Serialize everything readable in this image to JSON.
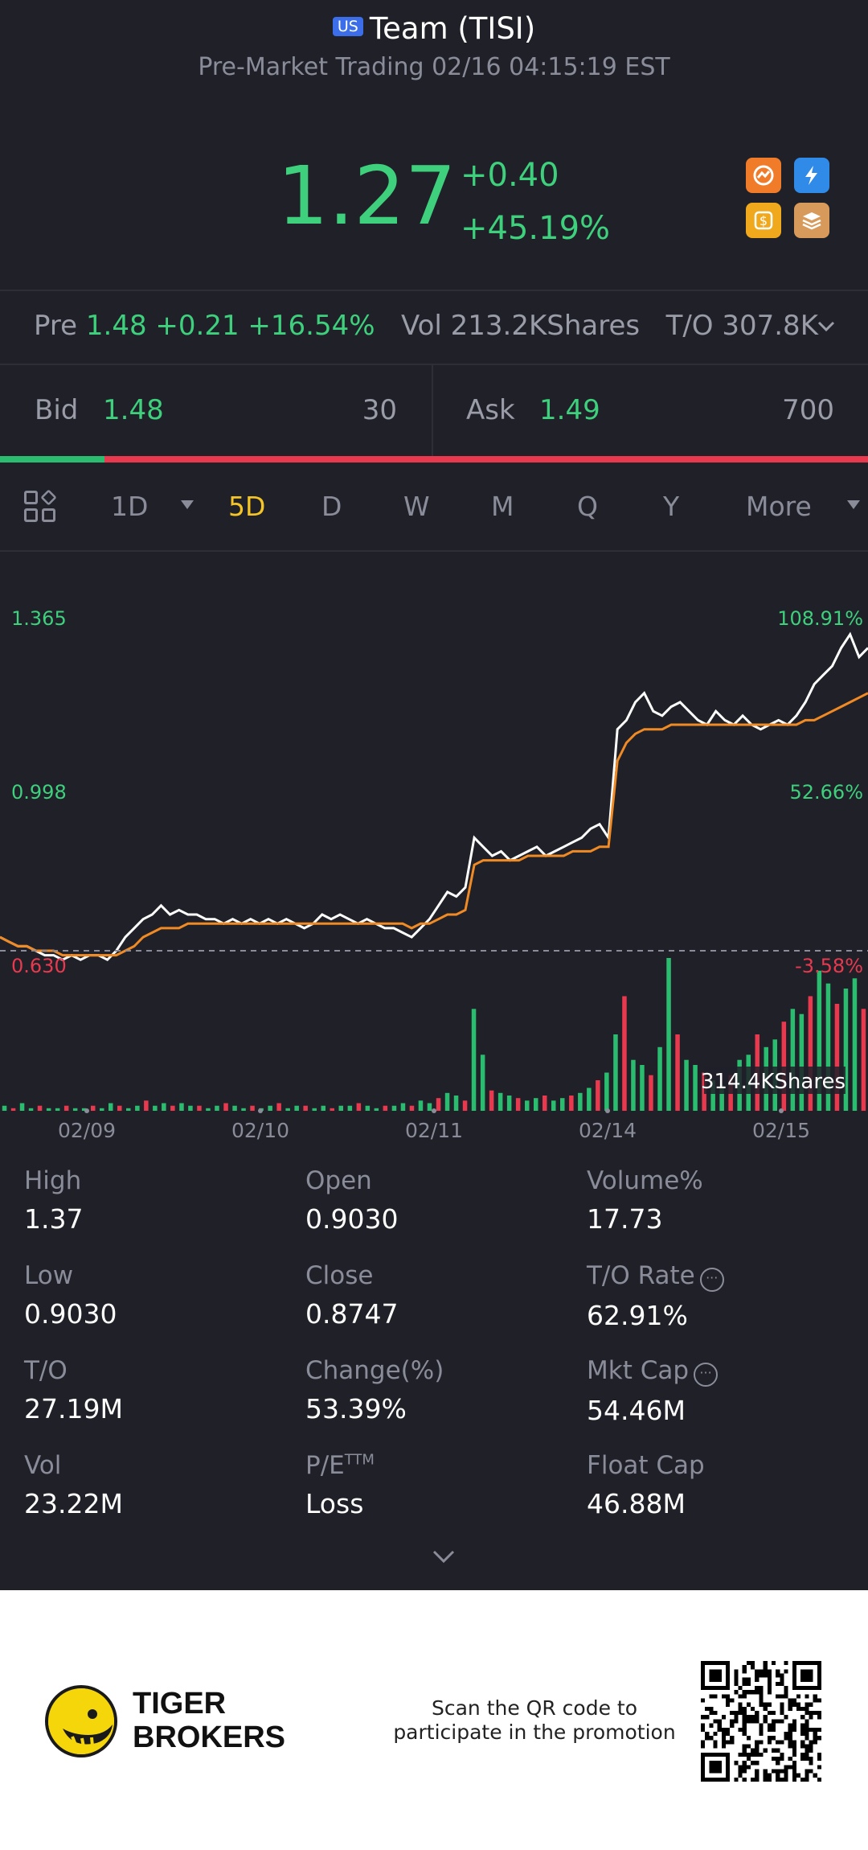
{
  "header": {
    "market_flag": "US",
    "title": "Team (TISI)",
    "subtitle": "Pre-Market Trading 02/16 04:15:19 EST",
    "price": "1.27",
    "change": "+0.40",
    "change_pct": "+45.19%",
    "badge_icons": [
      "orange-chart-icon",
      "lightning-1-icon",
      "dollar-icon",
      "stack-a-icon"
    ]
  },
  "premarket": {
    "label": "Pre",
    "price": "1.48",
    "change": "+0.21",
    "change_pct": "+16.54%",
    "vol": "Vol 213.2KShares",
    "turnover": "T/O 307.8K"
  },
  "bid": {
    "label": "Bid",
    "price": "1.48",
    "qty": "30"
  },
  "ask": {
    "label": "Ask",
    "price": "1.49",
    "qty": "700"
  },
  "bid_ask_ratio": 0.12,
  "tabs": [
    "1D",
    "5D",
    "D",
    "W",
    "M",
    "Q",
    "Y",
    "More"
  ],
  "active_tab": "5D",
  "chart_data": {
    "type": "line",
    "price_axis_left": [
      "1.365",
      "0.998",
      "0.630"
    ],
    "percent_axis_right": [
      "108.91%",
      "52.66%",
      "-3.58%"
    ],
    "x_tick_labels": [
      "02/09",
      "02/10",
      "02/11",
      "02/14",
      "02/15"
    ],
    "volume_label": "314.4KShares",
    "ylim": [
      0.63,
      1.365
    ],
    "reference_close": 0.655,
    "series": [
      {
        "color": "#ffffff",
        "values": [
          0.66,
          0.65,
          0.64,
          0.64,
          0.63,
          0.62,
          0.62,
          0.61,
          0.62,
          0.61,
          0.62,
          0.62,
          0.61,
          0.63,
          0.66,
          0.68,
          0.7,
          0.71,
          0.73,
          0.71,
          0.72,
          0.71,
          0.71,
          0.7,
          0.7,
          0.69,
          0.7,
          0.69,
          0.7,
          0.69,
          0.7,
          0.69,
          0.7,
          0.69,
          0.68,
          0.69,
          0.71,
          0.7,
          0.71,
          0.7,
          0.69,
          0.7,
          0.69,
          0.68,
          0.68,
          0.67,
          0.66,
          0.68,
          0.7,
          0.73,
          0.76,
          0.75,
          0.77,
          0.88,
          0.86,
          0.84,
          0.85,
          0.83,
          0.84,
          0.85,
          0.86,
          0.84,
          0.85,
          0.86,
          0.87,
          0.88,
          0.9,
          0.91,
          0.88,
          1.12,
          1.14,
          1.18,
          1.2,
          1.16,
          1.15,
          1.17,
          1.18,
          1.16,
          1.14,
          1.13,
          1.16,
          1.14,
          1.13,
          1.15,
          1.13,
          1.12,
          1.13,
          1.14,
          1.13,
          1.15,
          1.18,
          1.22,
          1.24,
          1.26,
          1.3,
          1.33,
          1.28,
          1.3
        ]
      },
      {
        "color": "#f08a24",
        "values": [
          0.66,
          0.65,
          0.64,
          0.64,
          0.63,
          0.63,
          0.63,
          0.62,
          0.62,
          0.62,
          0.62,
          0.62,
          0.62,
          0.62,
          0.63,
          0.64,
          0.66,
          0.67,
          0.68,
          0.68,
          0.68,
          0.69,
          0.69,
          0.69,
          0.69,
          0.69,
          0.69,
          0.69,
          0.69,
          0.69,
          0.69,
          0.69,
          0.69,
          0.69,
          0.69,
          0.69,
          0.69,
          0.69,
          0.69,
          0.69,
          0.69,
          0.69,
          0.69,
          0.69,
          0.69,
          0.69,
          0.68,
          0.69,
          0.69,
          0.7,
          0.71,
          0.71,
          0.72,
          0.82,
          0.83,
          0.83,
          0.83,
          0.83,
          0.83,
          0.84,
          0.84,
          0.84,
          0.84,
          0.84,
          0.85,
          0.85,
          0.85,
          0.86,
          0.86,
          1.05,
          1.09,
          1.11,
          1.12,
          1.12,
          1.12,
          1.13,
          1.13,
          1.13,
          1.13,
          1.13,
          1.13,
          1.13,
          1.13,
          1.13,
          1.13,
          1.13,
          1.13,
          1.13,
          1.13,
          1.13,
          1.14,
          1.14,
          1.15,
          1.16,
          1.17,
          1.18,
          1.19,
          1.2
        ]
      }
    ],
    "volume": [
      2,
      1,
      3,
      1,
      2,
      1,
      1,
      2,
      1,
      1,
      2,
      1,
      3,
      2,
      1,
      2,
      4,
      2,
      3,
      2,
      3,
      2,
      2,
      1,
      2,
      3,
      2,
      1,
      2,
      1,
      2,
      3,
      1,
      2,
      2,
      1,
      2,
      1,
      2,
      2,
      3,
      2,
      1,
      2,
      2,
      3,
      2,
      4,
      3,
      5,
      7,
      6,
      4,
      40,
      22,
      8,
      7,
      6,
      5,
      4,
      5,
      6,
      4,
      5,
      6,
      7,
      9,
      12,
      15,
      30,
      45,
      20,
      18,
      14,
      25,
      60,
      30,
      20,
      18,
      15,
      12,
      10,
      14,
      20,
      22,
      30,
      25,
      28,
      35,
      40,
      38,
      45,
      55,
      50,
      42,
      48,
      52,
      40
    ]
  },
  "stats": [
    {
      "label": "High",
      "value": "1.37"
    },
    {
      "label": "Open",
      "value": "0.9030"
    },
    {
      "label": "Volume%",
      "value": "17.73"
    },
    {
      "label": "Low",
      "value": "0.9030"
    },
    {
      "label": "Close",
      "value": "0.8747"
    },
    {
      "label": "T/O Rate",
      "value": "62.91%"
    },
    {
      "label": "T/O",
      "value": "27.19M"
    },
    {
      "label": "Change(%)",
      "value": "53.39%"
    },
    {
      "label": "Mkt Cap",
      "value": "54.46M"
    },
    {
      "label": "Vol",
      "value": "23.22M"
    },
    {
      "label": "P/E",
      "label_sup": "TTM",
      "value": "Loss"
    },
    {
      "label": "Float Cap",
      "value": "46.88M"
    }
  ],
  "footer": {
    "brand_line1": "TIGER",
    "brand_line2": "BROKERS",
    "scan_line1": "Scan the QR code to",
    "scan_line2": "participate in the promotion"
  },
  "colors": {
    "background": "#1f2028",
    "up": "#3ed07c",
    "down": "#e8394e",
    "active_tab": "#f5c527",
    "avg_line": "#f08a24"
  }
}
